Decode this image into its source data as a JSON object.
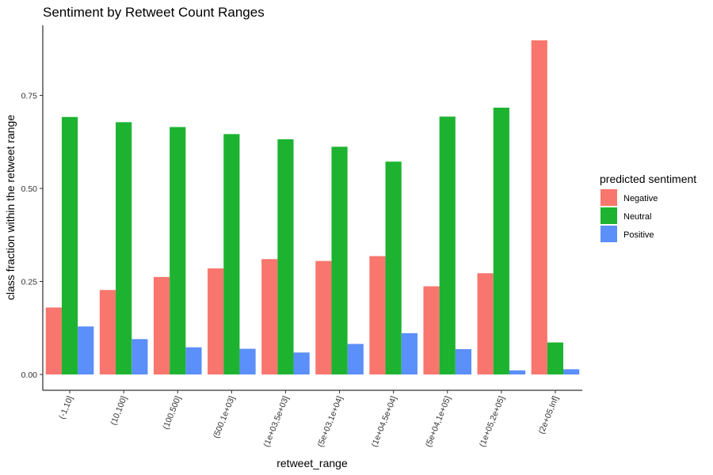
{
  "chart_data": {
    "type": "bar",
    "title": "Sentiment by Retweet Count Ranges",
    "xlabel": "retweet_range",
    "ylabel": "class fraction within the retweet range",
    "ylim": [
      0,
      0.93
    ],
    "yticks": [
      "0.00",
      "0.25",
      "0.50",
      "0.75"
    ],
    "categories": [
      "(-1,10]",
      "(10,100]",
      "(100,500]",
      "(500,1e+03]",
      "(1e+03,5e+03]",
      "(5e+03,1e+04]",
      "(1e+04,5e+04]",
      "(5e+04,1e+05]",
      "(1e+05,2e+05]",
      "(2e+05,Inf]"
    ],
    "legend_title": "predicted sentiment",
    "legend_position": "right",
    "grid": false,
    "series": [
      {
        "name": "Negative",
        "color": "#F8766D",
        "values": [
          0.18,
          0.227,
          0.262,
          0.285,
          0.31,
          0.305,
          0.318,
          0.237,
          0.272,
          0.898
        ]
      },
      {
        "name": "Neutral",
        "color": "#1DB331",
        "values": [
          0.692,
          0.678,
          0.665,
          0.646,
          0.632,
          0.612,
          0.572,
          0.693,
          0.717,
          0.086
        ]
      },
      {
        "name": "Positive",
        "color": "#5B8FF9",
        "values": [
          0.129,
          0.095,
          0.073,
          0.069,
          0.059,
          0.082,
          0.111,
          0.068,
          0.011,
          0.014
        ]
      }
    ]
  }
}
